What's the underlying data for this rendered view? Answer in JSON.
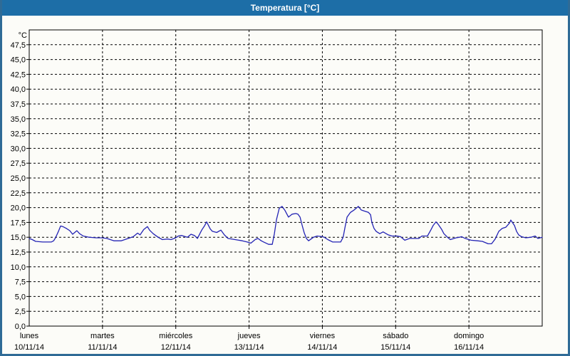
{
  "title": "Temperatura [°C]",
  "colors": {
    "title_bar": "#1d6ea7",
    "frame": "#2f6b96",
    "background": "#fcfcf8",
    "grid": "#000000",
    "line": "#2323b4",
    "title_text": "#ffffff"
  },
  "chart_data": {
    "type": "line",
    "title": "Temperatura [°C]",
    "unit_label": "°C",
    "xlabel": "",
    "ylabel": "°C",
    "ylim": [
      0,
      50
    ],
    "grid": true,
    "legend_position": "none",
    "y_ticks": [
      {
        "value": 47.5,
        "label": "47,5"
      },
      {
        "value": 45.0,
        "label": "45,0"
      },
      {
        "value": 42.5,
        "label": "42,5"
      },
      {
        "value": 40.0,
        "label": "40,0"
      },
      {
        "value": 37.5,
        "label": "37,5"
      },
      {
        "value": 35.0,
        "label": "35,0"
      },
      {
        "value": 32.5,
        "label": "32,5"
      },
      {
        "value": 30.0,
        "label": "30,0"
      },
      {
        "value": 27.5,
        "label": "27,5"
      },
      {
        "value": 25.0,
        "label": "25,0"
      },
      {
        "value": 22.5,
        "label": "22,5"
      },
      {
        "value": 20.0,
        "label": "20,0"
      },
      {
        "value": 17.5,
        "label": "17,5"
      },
      {
        "value": 15.0,
        "label": "15,0"
      },
      {
        "value": 12.5,
        "label": "12,5"
      },
      {
        "value": 10.0,
        "label": "10,0"
      },
      {
        "value": 7.5,
        "label": "7,5"
      },
      {
        "value": 5.0,
        "label": "5,0"
      },
      {
        "value": 2.5,
        "label": "2,5"
      },
      {
        "value": 0.0,
        "label": "0,0"
      }
    ],
    "x_days": [
      {
        "name": "lunes",
        "date": "10/11/14"
      },
      {
        "name": "martes",
        "date": "11/11/14"
      },
      {
        "name": "miércoles",
        "date": "12/11/14"
      },
      {
        "name": "jueves",
        "date": "13/11/14"
      },
      {
        "name": "viernes",
        "date": "14/11/14"
      },
      {
        "name": "sábado",
        "date": "15/11/14"
      },
      {
        "name": "domingo",
        "date": "16/11/14"
      }
    ],
    "x_total_hours": 168,
    "series": [
      {
        "name": "Temperatura",
        "color": "#2323b4",
        "points": [
          [
            0,
            14.8
          ],
          [
            1,
            14.6
          ],
          [
            2.1,
            14.3
          ],
          [
            4.4,
            14.2
          ],
          [
            7.2,
            14.2
          ],
          [
            8,
            14.4
          ],
          [
            8.6,
            14.9
          ],
          [
            9.5,
            15.9
          ],
          [
            10.3,
            16.9
          ],
          [
            11,
            16.8
          ],
          [
            12.1,
            16.5
          ],
          [
            13.3,
            16.1
          ],
          [
            14.2,
            15.5
          ],
          [
            15.6,
            16.1
          ],
          [
            16.5,
            15.6
          ],
          [
            17.7,
            15.2
          ],
          [
            19.6,
            15.0
          ],
          [
            21.9,
            14.9
          ],
          [
            23.8,
            14.9
          ],
          [
            25.4,
            14.8
          ],
          [
            27.8,
            14.4
          ],
          [
            30.1,
            14.4
          ],
          [
            32.4,
            14.8
          ],
          [
            34.1,
            15.1
          ],
          [
            35.5,
            15.7
          ],
          [
            36.3,
            15.4
          ],
          [
            37.5,
            16.3
          ],
          [
            38.7,
            16.8
          ],
          [
            39.4,
            16.2
          ],
          [
            40.6,
            15.6
          ],
          [
            42.2,
            15.0
          ],
          [
            43.6,
            14.6
          ],
          [
            45.3,
            14.7
          ],
          [
            46.4,
            14.6
          ],
          [
            47.5,
            14.8
          ],
          [
            48.3,
            15.0
          ],
          [
            48.8,
            15.2
          ],
          [
            49.9,
            15.3
          ],
          [
            51.8,
            15.0
          ],
          [
            53,
            15.5
          ],
          [
            54.1,
            15.3
          ],
          [
            55.1,
            14.8
          ],
          [
            56.5,
            16.2
          ],
          [
            57.5,
            17.0
          ],
          [
            58.1,
            17.6
          ],
          [
            59.3,
            16.4
          ],
          [
            60,
            16.0
          ],
          [
            61.4,
            15.8
          ],
          [
            62.8,
            16.2
          ],
          [
            63.9,
            15.4
          ],
          [
            65.1,
            14.8
          ],
          [
            67.4,
            14.6
          ],
          [
            69.8,
            14.4
          ],
          [
            71.4,
            14.2
          ],
          [
            72.6,
            14.0
          ],
          [
            74,
            14.6
          ],
          [
            74.9,
            14.8
          ],
          [
            76,
            14.4
          ],
          [
            76.8,
            14.2
          ],
          [
            78.4,
            13.8
          ],
          [
            79.6,
            13.8
          ],
          [
            80.3,
            15.6
          ],
          [
            81,
            18.0
          ],
          [
            81.9,
            19.9
          ],
          [
            82.8,
            20.2
          ],
          [
            83.8,
            19.5
          ],
          [
            84.9,
            18.4
          ],
          [
            86.1,
            18.9
          ],
          [
            87.3,
            19.0
          ],
          [
            88,
            18.9
          ],
          [
            88.7,
            18.4
          ],
          [
            89.4,
            17.0
          ],
          [
            90.1,
            15.7
          ],
          [
            90.8,
            14.8
          ],
          [
            91.5,
            14.4
          ],
          [
            93.1,
            15.0
          ],
          [
            94.3,
            15.2
          ],
          [
            96,
            15.1
          ],
          [
            96.6,
            15.0
          ],
          [
            97.8,
            14.6
          ],
          [
            99.4,
            14.2
          ],
          [
            102,
            14.2
          ],
          [
            102.8,
            15.0
          ],
          [
            103.4,
            16.6
          ],
          [
            104.1,
            18.4
          ],
          [
            105.2,
            19.2
          ],
          [
            106.4,
            19.6
          ],
          [
            107.8,
            20.2
          ],
          [
            108.7,
            19.6
          ],
          [
            109.9,
            19.4
          ],
          [
            111.1,
            19.2
          ],
          [
            111.8,
            18.8
          ],
          [
            112.2,
            17.5
          ],
          [
            112.9,
            16.5
          ],
          [
            113.6,
            16.0
          ],
          [
            114.8,
            15.6
          ],
          [
            115.9,
            15.9
          ],
          [
            117.6,
            15.4
          ],
          [
            118.8,
            15.2
          ],
          [
            120.4,
            15.2
          ],
          [
            121.6,
            15.1
          ],
          [
            123,
            14.5
          ],
          [
            124.6,
            14.8
          ],
          [
            127.6,
            14.8
          ],
          [
            128.6,
            15.2
          ],
          [
            130.4,
            15.2
          ],
          [
            131.6,
            16.3
          ],
          [
            132.3,
            17.0
          ],
          [
            133.2,
            17.6
          ],
          [
            133.9,
            17.2
          ],
          [
            135.1,
            16.3
          ],
          [
            135.8,
            15.6
          ],
          [
            137,
            15.0
          ],
          [
            137.9,
            14.6
          ],
          [
            139.8,
            14.9
          ],
          [
            140.9,
            15.0
          ],
          [
            141.6,
            15.1
          ],
          [
            142.8,
            14.8
          ],
          [
            144.7,
            14.5
          ],
          [
            146.8,
            14.4
          ],
          [
            148.4,
            14.3
          ],
          [
            150.3,
            13.9
          ],
          [
            151.4,
            13.9
          ],
          [
            152.6,
            14.7
          ],
          [
            153.8,
            16.0
          ],
          [
            154.9,
            16.5
          ],
          [
            156.1,
            16.7
          ],
          [
            157.3,
            17.4
          ],
          [
            157.7,
            17.9
          ],
          [
            158.9,
            17.0
          ],
          [
            159.6,
            16.0
          ],
          [
            160.3,
            15.4
          ],
          [
            161.2,
            15.1
          ],
          [
            162.6,
            14.9
          ],
          [
            164.3,
            15.0
          ],
          [
            165.7,
            15.2
          ],
          [
            166.6,
            14.8
          ],
          [
            168,
            15.0
          ]
        ]
      }
    ]
  }
}
